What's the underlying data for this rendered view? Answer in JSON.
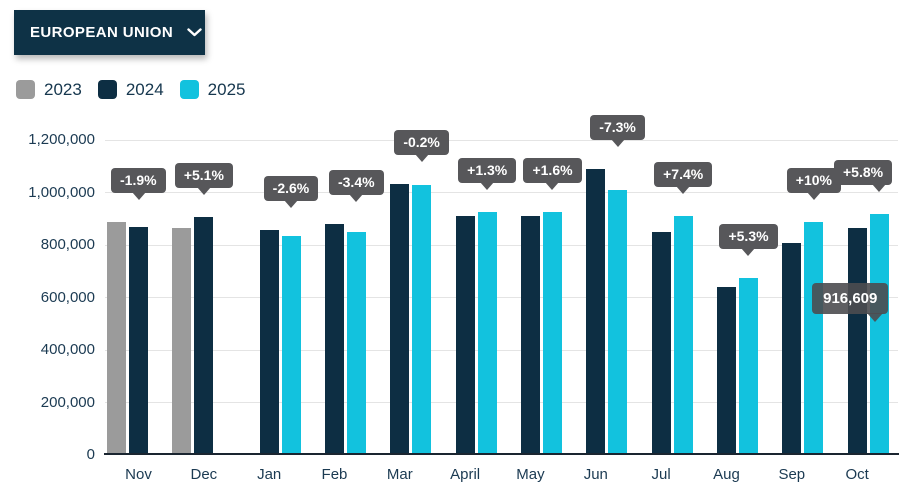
{
  "dropdown": {
    "label": "EUROPEAN UNION"
  },
  "legend": [
    {
      "label": "2023",
      "color": "#9b9b9b"
    },
    {
      "label": "2024",
      "color": "#0d2e43"
    },
    {
      "label": "2025",
      "color": "#12c2de"
    }
  ],
  "colors": {
    "background": "#ffffff",
    "dropdown_bg": "#0e3246",
    "dropdown_text": "#ffffff",
    "axis_text": "#1b3a52",
    "gridline": "#e4e4e4",
    "axis_line": "#1a2530",
    "tooltip_bg": "#57575a",
    "tooltip_text": "#ffffff",
    "value_tooltip_bg": "rgba(77,77,80,0.9)"
  },
  "chart_data": {
    "type": "bar",
    "title": "",
    "xlabel": "",
    "ylabel": "",
    "categories": [
      "Nov",
      "Dec",
      "Jan",
      "Feb",
      "Mar",
      "April",
      "May",
      "Jun",
      "Jul",
      "Aug",
      "Sep",
      "Oct"
    ],
    "series": [
      {
        "name": "2023",
        "color": "#9b9b9b",
        "values": [
          887000,
          864000,
          null,
          null,
          null,
          null,
          null,
          null,
          null,
          null,
          null,
          null
        ]
      },
      {
        "name": "2024",
        "color": "#0d2e43",
        "values": [
          870000,
          908000,
          856000,
          880000,
          1032000,
          912000,
          912000,
          1089000,
          848000,
          640000,
          806000,
          866000
        ]
      },
      {
        "name": "2025",
        "color": "#12c2de",
        "values": [
          null,
          null,
          834000,
          850000,
          1030000,
          924000,
          927000,
          1010000,
          911000,
          674000,
          887000,
          916609
        ]
      }
    ],
    "change_labels": [
      "-1.9%",
      "+5.1%",
      "-2.6%",
      "-3.4%",
      "-0.2%",
      "+1.3%",
      "+1.6%",
      "-7.3%",
      "+7.4%",
      "+5.3%",
      "+10%",
      "+5.8%"
    ],
    "value_tooltip": {
      "text": "916,609",
      "category": "Oct",
      "series": "2025"
    },
    "yticks": [
      "1,200,000",
      "1,000,000",
      "800,000",
      "600,000",
      "400,000",
      "200,000",
      "0"
    ],
    "ylim": [
      0,
      1200000
    ],
    "grid": true,
    "legend_position": "top-left"
  }
}
